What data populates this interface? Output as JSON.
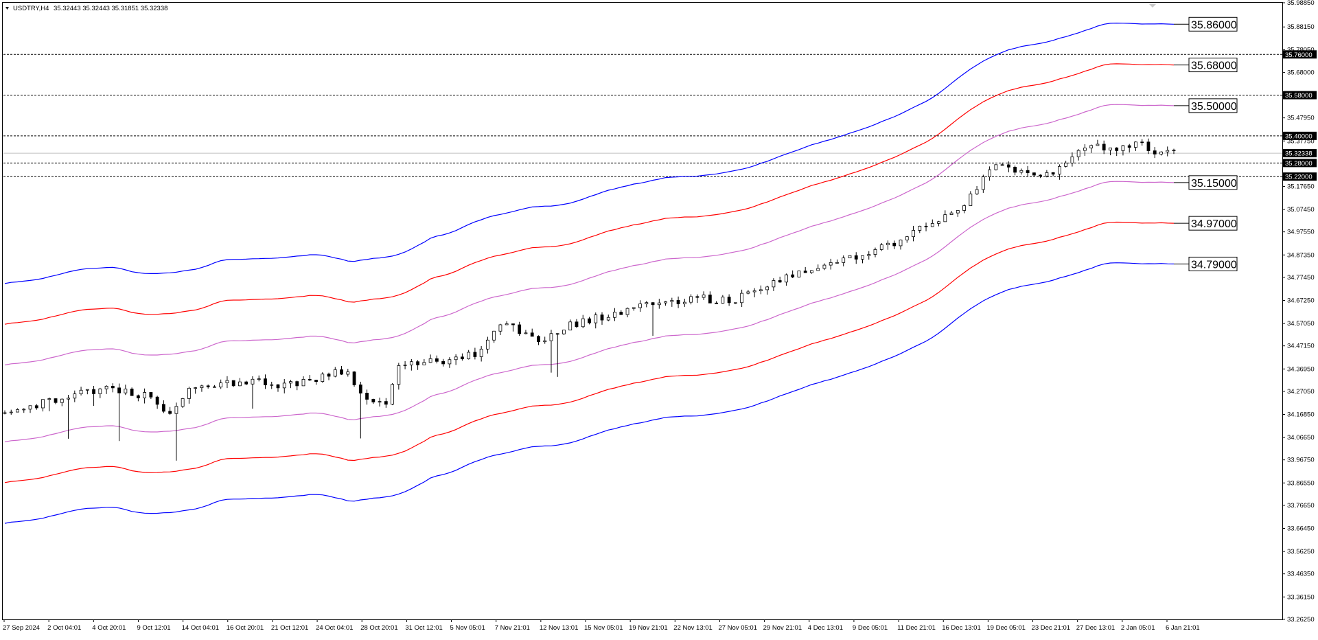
{
  "header": {
    "symbol": "USDTRY,H4",
    "ohlc": "35.32443 35.32443 35.31851 35.32338"
  },
  "colors": {
    "background": "#ffffff",
    "frame": "#000000",
    "candle": "#000000",
    "outer_band": "#0000ff",
    "middle_band": "#ff0000",
    "inner_band": "#cc66cc",
    "hline": "#000000",
    "price_marker": "#000000",
    "last_price_line": "#c0c0c0",
    "tooltip_box": "#ffffff"
  },
  "chart_data": {
    "type": "candlestick",
    "symbol": "USDTRY",
    "timeframe": "H4",
    "ylim": [
      33.2622,
      35.9885
    ],
    "y_ticks": [
      "35.98850",
      "35.88150",
      "35.78050",
      "35.68000",
      "35.57950",
      "35.47950",
      "35.37750",
      "35.27650",
      "35.17650",
      "35.07450",
      "34.97550",
      "34.87350",
      "34.77450",
      "34.67250",
      "34.57050",
      "34.47150",
      "34.36950",
      "34.27050",
      "34.16850",
      "34.06650",
      "33.96750",
      "33.86550",
      "33.76650",
      "33.66450",
      "33.56250",
      "33.46350",
      "33.36150",
      "33.26250"
    ],
    "x_ticks": [
      "27 Sep 2024",
      "2 Oct 04:01",
      "4 Oct 20:01",
      "9 Oct 12:01",
      "14 Oct 04:01",
      "16 Oct 20:01",
      "21 Oct 12:01",
      "24 Oct 04:01",
      "28 Oct 20:01",
      "31 Oct 12:01",
      "5 Nov 05:01",
      "7 Nov 21:01",
      "12 Nov 13:01",
      "15 Nov 05:01",
      "19 Nov 21:01",
      "22 Nov 13:01",
      "27 Nov 05:01",
      "29 Nov 21:01",
      "4 Dec 13:01",
      "9 Dec 05:01",
      "11 Dec 21:01",
      "16 Dec 13:01",
      "19 Dec 05:01",
      "23 Dec 21:01",
      "27 Dec 13:01",
      "2 Jan 05:01",
      "6 Jan 21:01"
    ],
    "close_anchors": [
      [
        0,
        34.18
      ],
      [
        6,
        34.22
      ],
      [
        12,
        34.27
      ],
      [
        18,
        34.28
      ],
      [
        22,
        34.25
      ],
      [
        26,
        34.18
      ],
      [
        29,
        34.27
      ],
      [
        34,
        34.3
      ],
      [
        40,
        34.31
      ],
      [
        44,
        34.3
      ],
      [
        48,
        34.31
      ],
      [
        52,
        34.36
      ],
      [
        54,
        34.36
      ],
      [
        57,
        34.23
      ],
      [
        60,
        34.2
      ],
      [
        62,
        34.38
      ],
      [
        66,
        34.4
      ],
      [
        71,
        34.41
      ],
      [
        74,
        34.44
      ],
      [
        77,
        34.52
      ],
      [
        79,
        34.58
      ],
      [
        82,
        34.52
      ],
      [
        85,
        34.5
      ],
      [
        88,
        34.55
      ],
      [
        91,
        34.58
      ],
      [
        96,
        34.61
      ],
      [
        100,
        34.64
      ],
      [
        105,
        34.67
      ],
      [
        110,
        34.68
      ],
      [
        115,
        34.67
      ],
      [
        118,
        34.72
      ],
      [
        124,
        34.78
      ],
      [
        130,
        34.83
      ],
      [
        136,
        34.88
      ],
      [
        140,
        34.93
      ],
      [
        145,
        35.0
      ],
      [
        150,
        35.06
      ],
      [
        153,
        35.18
      ],
      [
        156,
        35.26
      ],
      [
        160,
        35.25
      ],
      [
        163,
        35.22
      ],
      [
        166,
        35.25
      ],
      [
        169,
        35.34
      ],
      [
        172,
        35.36
      ],
      [
        175,
        35.33
      ],
      [
        178,
        35.38
      ],
      [
        181,
        35.33
      ],
      [
        183,
        35.32
      ],
      [
        184,
        35.32
      ]
    ],
    "bands": {
      "basis_offset": 0.015,
      "offsets": [
        0.5355,
        0.3555,
        0.1755,
        -0.1645,
        -0.3445,
        -0.5245
      ],
      "colors": [
        "#0000ff",
        "#ff0000",
        "#cc66cc",
        "#cc66cc",
        "#ff0000",
        "#0000ff"
      ],
      "labels": [
        "35.86000",
        "35.68000",
        "35.50000",
        "35.15000",
        "34.97000",
        "34.79000"
      ]
    },
    "horizontal_levels": [
      {
        "label": "35.76000",
        "value": 35.76
      },
      {
        "label": "35.58000",
        "value": 35.58
      },
      {
        "label": "35.40000",
        "value": 35.4
      },
      {
        "label": "35.28000",
        "value": 35.28
      },
      {
        "label": "35.22000",
        "value": 35.22
      }
    ],
    "last_price": {
      "label": "35.32338",
      "value": 35.32338
    }
  }
}
